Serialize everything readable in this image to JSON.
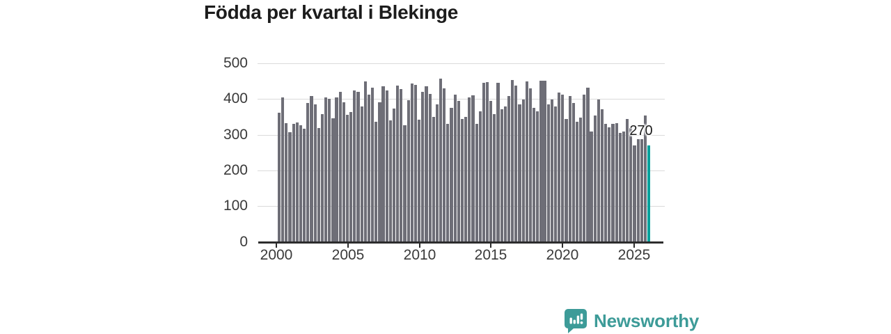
{
  "title": "Födda per kvartal i Blekinge",
  "annotation": {
    "label": "270"
  },
  "logo": {
    "text": "Newsworthy"
  },
  "colors": {
    "bar": "#6e6e77",
    "highlight": "#00a19c",
    "logo_teal": "#3d9b98",
    "axis_text": "#3a3a3a",
    "gridline": "#dadada",
    "axis_line": "#2d2d2d",
    "title_text": "#1c1c1c"
  },
  "chart_data": {
    "type": "bar",
    "title": "Födda per kvartal i Blekinge",
    "xlabel": "",
    "ylabel": "",
    "ylim": [
      0,
      500
    ],
    "grid": "horizontal",
    "x_start": "2000 Q1",
    "x_end": "2025 Q4",
    "x_tick_labels": [
      "2000",
      "2005",
      "2010",
      "2015",
      "2020",
      "2025"
    ],
    "y_tick_labels": [
      "0",
      "100",
      "200",
      "300",
      "400",
      "500"
    ],
    "highlight_last_bar": true,
    "annotated_value": 270,
    "values": [
      362,
      405,
      332,
      308,
      330,
      335,
      327,
      318,
      390,
      408,
      386,
      320,
      358,
      404,
      400,
      346,
      405,
      420,
      392,
      357,
      363,
      425,
      420,
      380,
      450,
      412,
      432,
      337,
      392,
      435,
      425,
      341,
      373,
      438,
      428,
      327,
      396,
      444,
      440,
      343,
      420,
      436,
      415,
      350,
      385,
      457,
      430,
      330,
      375,
      412,
      395,
      345,
      350,
      405,
      410,
      330,
      365,
      445,
      448,
      395,
      358,
      446,
      372,
      380,
      408,
      453,
      438,
      385,
      398,
      450,
      430,
      375,
      365,
      452,
      452,
      385,
      398,
      380,
      418,
      412,
      345,
      408,
      390,
      337,
      348,
      412,
      432,
      310,
      355,
      398,
      372,
      330,
      322,
      330,
      333,
      305,
      310,
      345,
      320,
      270,
      288,
      288,
      355,
      270
    ]
  }
}
